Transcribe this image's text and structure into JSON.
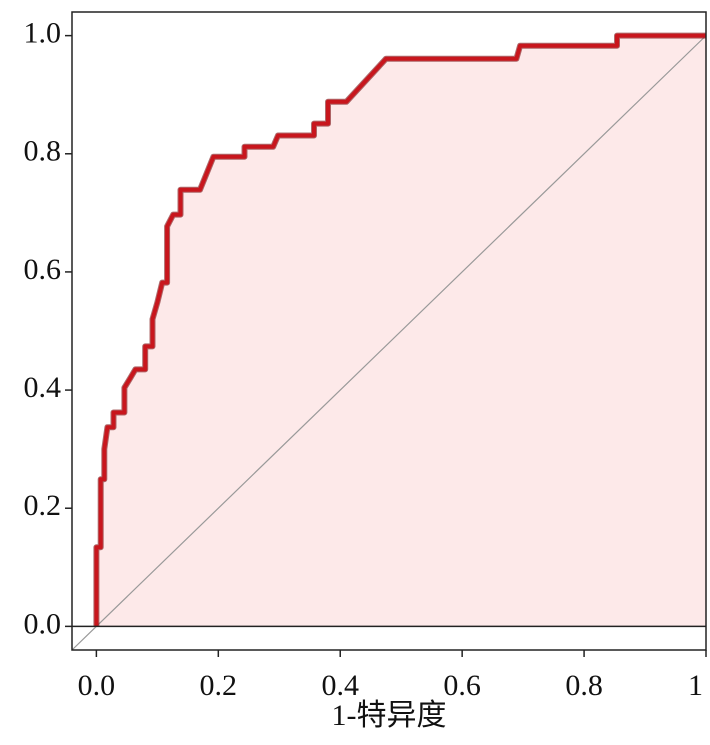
{
  "chart_data": {
    "type": "line",
    "x_label": "1-特异度",
    "x": [
      0,
      0,
      0.007,
      0.007,
      0.013,
      0.013,
      0.018,
      0.028,
      0.028,
      0.046,
      0.046,
      0.056,
      0.064,
      0.08,
      0.08,
      0.092,
      0.092,
      0.1,
      0.108,
      0.116,
      0.116,
      0.126,
      0.138,
      0.138,
      0.17,
      0.192,
      0.243,
      0.243,
      0.29,
      0.298,
      0.357,
      0.357,
      0.38,
      0.38,
      0.41,
      0.475,
      0.689,
      0.695,
      0.854,
      0.854,
      1
    ],
    "values": [
      0,
      0.134,
      0.134,
      0.249,
      0.249,
      0.3,
      0.337,
      0.337,
      0.362,
      0.362,
      0.404,
      0.421,
      0.435,
      0.435,
      0.474,
      0.474,
      0.52,
      0.548,
      0.582,
      0.582,
      0.677,
      0.697,
      0.697,
      0.739,
      0.739,
      0.795,
      0.795,
      0.812,
      0.812,
      0.831,
      0.831,
      0.851,
      0.851,
      0.888,
      0.888,
      0.961,
      0.961,
      0.983,
      0.983,
      1,
      1
    ],
    "color": "#c8161d",
    "fill_color": "#fde9e9",
    "xlim": [
      -0.04,
      1.0
    ],
    "ylim": [
      -0.04,
      1.04
    ],
    "xticks": [
      {
        "value": 0,
        "label": "0.0"
      },
      {
        "value": 0.2,
        "label": "0.2"
      },
      {
        "value": 0.4,
        "label": "0.4"
      },
      {
        "value": 0.6,
        "label": "0.6"
      },
      {
        "value": 0.8,
        "label": "0.8"
      },
      1
    ],
    "yticks": [
      {
        "value": 0,
        "label": "0.0"
      },
      {
        "value": 0.2,
        "label": "0.2"
      },
      {
        "value": 0.4,
        "label": "0.4"
      },
      {
        "value": 0.6,
        "label": "0.6"
      },
      {
        "value": 0.8,
        "label": "0.8"
      },
      {
        "value": 1,
        "label": "1.0"
      }
    ]
  }
}
